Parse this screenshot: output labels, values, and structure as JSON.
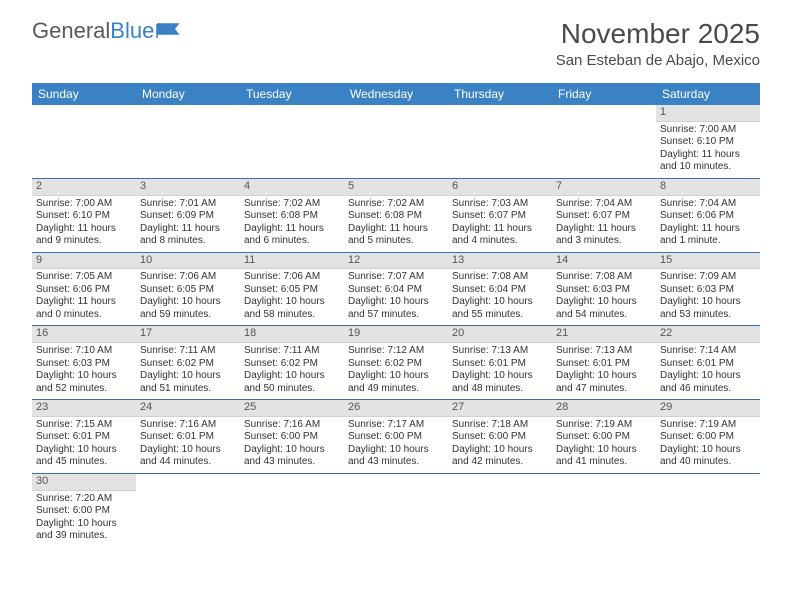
{
  "logo": {
    "text_a": "General",
    "text_b": "Blue"
  },
  "title": "November 2025",
  "location": "San Esteban de Abajo, Mexico",
  "day_headers": [
    "Sunday",
    "Monday",
    "Tuesday",
    "Wednesday",
    "Thursday",
    "Friday",
    "Saturday"
  ],
  "colors": {
    "header_bg": "#3b82c4",
    "header_text": "#ffffff",
    "daynum_bg": "#e3e3e3",
    "row_border": "#3b6fa8",
    "page_bg": "#ffffff",
    "text": "#333333"
  },
  "weeks": [
    [
      {
        "n": "",
        "sunrise": "",
        "sunset": "",
        "daylight": ""
      },
      {
        "n": "",
        "sunrise": "",
        "sunset": "",
        "daylight": ""
      },
      {
        "n": "",
        "sunrise": "",
        "sunset": "",
        "daylight": ""
      },
      {
        "n": "",
        "sunrise": "",
        "sunset": "",
        "daylight": ""
      },
      {
        "n": "",
        "sunrise": "",
        "sunset": "",
        "daylight": ""
      },
      {
        "n": "",
        "sunrise": "",
        "sunset": "",
        "daylight": ""
      },
      {
        "n": "1",
        "sunrise": "Sunrise: 7:00 AM",
        "sunset": "Sunset: 6:10 PM",
        "daylight": "Daylight: 11 hours and 10 minutes."
      }
    ],
    [
      {
        "n": "2",
        "sunrise": "Sunrise: 7:00 AM",
        "sunset": "Sunset: 6:10 PM",
        "daylight": "Daylight: 11 hours and 9 minutes."
      },
      {
        "n": "3",
        "sunrise": "Sunrise: 7:01 AM",
        "sunset": "Sunset: 6:09 PM",
        "daylight": "Daylight: 11 hours and 8 minutes."
      },
      {
        "n": "4",
        "sunrise": "Sunrise: 7:02 AM",
        "sunset": "Sunset: 6:08 PM",
        "daylight": "Daylight: 11 hours and 6 minutes."
      },
      {
        "n": "5",
        "sunrise": "Sunrise: 7:02 AM",
        "sunset": "Sunset: 6:08 PM",
        "daylight": "Daylight: 11 hours and 5 minutes."
      },
      {
        "n": "6",
        "sunrise": "Sunrise: 7:03 AM",
        "sunset": "Sunset: 6:07 PM",
        "daylight": "Daylight: 11 hours and 4 minutes."
      },
      {
        "n": "7",
        "sunrise": "Sunrise: 7:04 AM",
        "sunset": "Sunset: 6:07 PM",
        "daylight": "Daylight: 11 hours and 3 minutes."
      },
      {
        "n": "8",
        "sunrise": "Sunrise: 7:04 AM",
        "sunset": "Sunset: 6:06 PM",
        "daylight": "Daylight: 11 hours and 1 minute."
      }
    ],
    [
      {
        "n": "9",
        "sunrise": "Sunrise: 7:05 AM",
        "sunset": "Sunset: 6:06 PM",
        "daylight": "Daylight: 11 hours and 0 minutes."
      },
      {
        "n": "10",
        "sunrise": "Sunrise: 7:06 AM",
        "sunset": "Sunset: 6:05 PM",
        "daylight": "Daylight: 10 hours and 59 minutes."
      },
      {
        "n": "11",
        "sunrise": "Sunrise: 7:06 AM",
        "sunset": "Sunset: 6:05 PM",
        "daylight": "Daylight: 10 hours and 58 minutes."
      },
      {
        "n": "12",
        "sunrise": "Sunrise: 7:07 AM",
        "sunset": "Sunset: 6:04 PM",
        "daylight": "Daylight: 10 hours and 57 minutes."
      },
      {
        "n": "13",
        "sunrise": "Sunrise: 7:08 AM",
        "sunset": "Sunset: 6:04 PM",
        "daylight": "Daylight: 10 hours and 55 minutes."
      },
      {
        "n": "14",
        "sunrise": "Sunrise: 7:08 AM",
        "sunset": "Sunset: 6:03 PM",
        "daylight": "Daylight: 10 hours and 54 minutes."
      },
      {
        "n": "15",
        "sunrise": "Sunrise: 7:09 AM",
        "sunset": "Sunset: 6:03 PM",
        "daylight": "Daylight: 10 hours and 53 minutes."
      }
    ],
    [
      {
        "n": "16",
        "sunrise": "Sunrise: 7:10 AM",
        "sunset": "Sunset: 6:03 PM",
        "daylight": "Daylight: 10 hours and 52 minutes."
      },
      {
        "n": "17",
        "sunrise": "Sunrise: 7:11 AM",
        "sunset": "Sunset: 6:02 PM",
        "daylight": "Daylight: 10 hours and 51 minutes."
      },
      {
        "n": "18",
        "sunrise": "Sunrise: 7:11 AM",
        "sunset": "Sunset: 6:02 PM",
        "daylight": "Daylight: 10 hours and 50 minutes."
      },
      {
        "n": "19",
        "sunrise": "Sunrise: 7:12 AM",
        "sunset": "Sunset: 6:02 PM",
        "daylight": "Daylight: 10 hours and 49 minutes."
      },
      {
        "n": "20",
        "sunrise": "Sunrise: 7:13 AM",
        "sunset": "Sunset: 6:01 PM",
        "daylight": "Daylight: 10 hours and 48 minutes."
      },
      {
        "n": "21",
        "sunrise": "Sunrise: 7:13 AM",
        "sunset": "Sunset: 6:01 PM",
        "daylight": "Daylight: 10 hours and 47 minutes."
      },
      {
        "n": "22",
        "sunrise": "Sunrise: 7:14 AM",
        "sunset": "Sunset: 6:01 PM",
        "daylight": "Daylight: 10 hours and 46 minutes."
      }
    ],
    [
      {
        "n": "23",
        "sunrise": "Sunrise: 7:15 AM",
        "sunset": "Sunset: 6:01 PM",
        "daylight": "Daylight: 10 hours and 45 minutes."
      },
      {
        "n": "24",
        "sunrise": "Sunrise: 7:16 AM",
        "sunset": "Sunset: 6:01 PM",
        "daylight": "Daylight: 10 hours and 44 minutes."
      },
      {
        "n": "25",
        "sunrise": "Sunrise: 7:16 AM",
        "sunset": "Sunset: 6:00 PM",
        "daylight": "Daylight: 10 hours and 43 minutes."
      },
      {
        "n": "26",
        "sunrise": "Sunrise: 7:17 AM",
        "sunset": "Sunset: 6:00 PM",
        "daylight": "Daylight: 10 hours and 43 minutes."
      },
      {
        "n": "27",
        "sunrise": "Sunrise: 7:18 AM",
        "sunset": "Sunset: 6:00 PM",
        "daylight": "Daylight: 10 hours and 42 minutes."
      },
      {
        "n": "28",
        "sunrise": "Sunrise: 7:19 AM",
        "sunset": "Sunset: 6:00 PM",
        "daylight": "Daylight: 10 hours and 41 minutes."
      },
      {
        "n": "29",
        "sunrise": "Sunrise: 7:19 AM",
        "sunset": "Sunset: 6:00 PM",
        "daylight": "Daylight: 10 hours and 40 minutes."
      }
    ],
    [
      {
        "n": "30",
        "sunrise": "Sunrise: 7:20 AM",
        "sunset": "Sunset: 6:00 PM",
        "daylight": "Daylight: 10 hours and 39 minutes."
      },
      {
        "n": "",
        "sunrise": "",
        "sunset": "",
        "daylight": ""
      },
      {
        "n": "",
        "sunrise": "",
        "sunset": "",
        "daylight": ""
      },
      {
        "n": "",
        "sunrise": "",
        "sunset": "",
        "daylight": ""
      },
      {
        "n": "",
        "sunrise": "",
        "sunset": "",
        "daylight": ""
      },
      {
        "n": "",
        "sunrise": "",
        "sunset": "",
        "daylight": ""
      },
      {
        "n": "",
        "sunrise": "",
        "sunset": "",
        "daylight": ""
      }
    ]
  ]
}
